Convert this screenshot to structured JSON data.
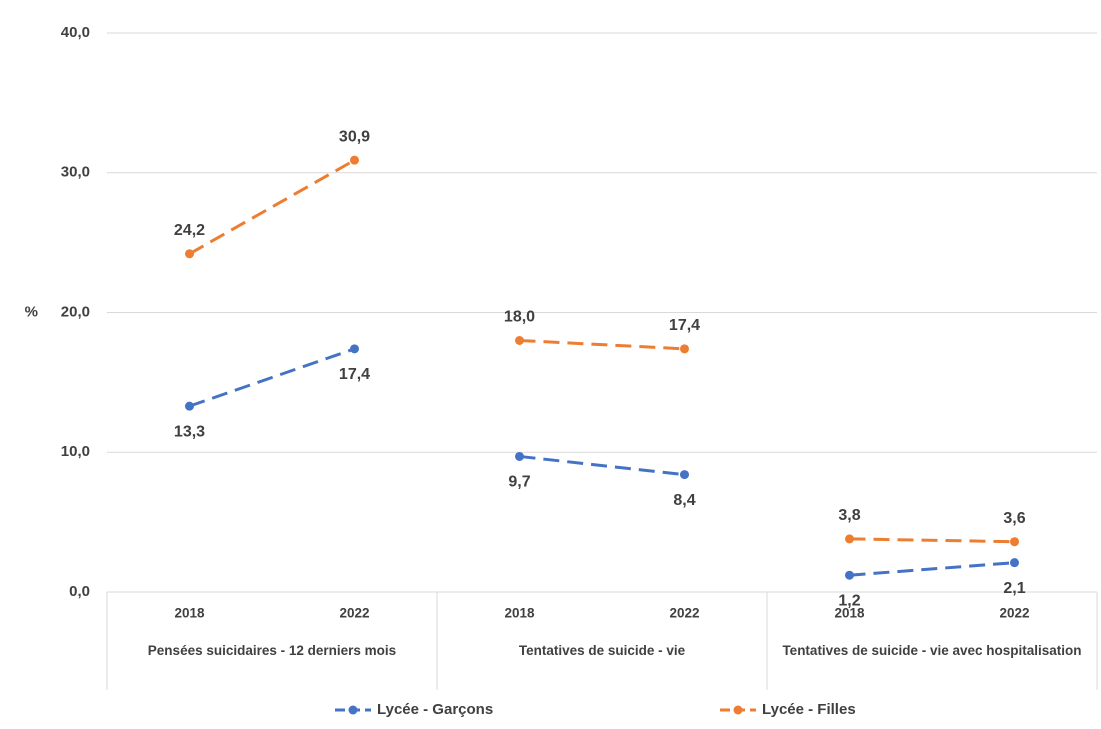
{
  "chart_data": {
    "type": "line",
    "ylabel": "%",
    "groups": [
      {
        "name": "Pensées suicidaires - 12 derniers mois",
        "categories": [
          "2018",
          "2022"
        ]
      },
      {
        "name": "Tentatives de suicide - vie",
        "categories": [
          "2018",
          "2022"
        ]
      },
      {
        "name": "Tentatives de suicide - vie avec hospitalisation",
        "categories": [
          "2018",
          "2022"
        ]
      }
    ],
    "series": [
      {
        "name": "Lycée - Garçons",
        "color": "#4472c4",
        "values": [
          13.3,
          17.4,
          9.7,
          8.4,
          1.2,
          2.1
        ],
        "value_labels": [
          "13,3",
          "17,4",
          "9,7",
          "8,4",
          "1,2",
          "2,1"
        ]
      },
      {
        "name": "Lycée - Filles",
        "color": "#ed7d31",
        "values": [
          24.2,
          30.9,
          18.0,
          17.4,
          3.8,
          3.6
        ],
        "value_labels": [
          "24,2",
          "30,9",
          "18,0",
          "17,4",
          "3,8",
          "3,6"
        ]
      }
    ],
    "ylim": [
      0,
      40
    ],
    "yticks": [
      {
        "value": 0,
        "label": "0,0"
      },
      {
        "value": 10,
        "label": "10,0"
      },
      {
        "value": 20,
        "label": "20,0"
      },
      {
        "value": 30,
        "label": "30,0"
      },
      {
        "value": 40,
        "label": "40,0"
      }
    ],
    "grid": true,
    "legend": "bottom"
  }
}
